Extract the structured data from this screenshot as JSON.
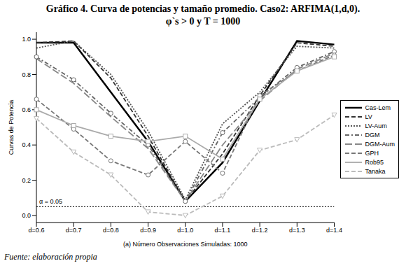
{
  "chart_data": {
    "type": "line",
    "title": "Gráfico 4. Curva de potencias y tamaño promedio. Caso2: ARFIMA(1,d,0).",
    "subtitle": "φ`s > 0 y T = 1000",
    "x_label": "(a) Número Observaciones Simuladas: 1000",
    "y_label": "Curvas de Potencia",
    "footer": "Fuente: elaboración propia",
    "categories": [
      "d=0.6",
      "d=0.7",
      "d=0.8",
      "d=0.9",
      "d=1.0",
      "d=1.1",
      "d=1.2",
      "d=1.3",
      "d=1.4"
    ],
    "series": [
      {
        "name": "Cas-Lem",
        "color": "#000000",
        "line_style": "solid",
        "marker": "none",
        "values": [
          0.98,
          0.98,
          0.7,
          0.42,
          0.08,
          0.3,
          0.65,
          0.99,
          0.97
        ]
      },
      {
        "name": "LV",
        "color": "#333333",
        "line_style": "dashed",
        "marker": "none",
        "values": [
          0.98,
          0.99,
          0.78,
          0.45,
          0.08,
          0.35,
          0.68,
          0.98,
          0.96
        ]
      },
      {
        "name": "LV-Aum",
        "color": "#555555",
        "line_style": "dotted",
        "marker": "none",
        "values": [
          0.95,
          0.99,
          0.8,
          0.48,
          0.09,
          0.52,
          0.7,
          0.96,
          0.95
        ]
      },
      {
        "name": "DGM",
        "color": "#666666",
        "line_style": "dashdot",
        "marker": "circle",
        "values": [
          0.9,
          0.77,
          0.58,
          0.4,
          0.08,
          0.47,
          0.67,
          0.84,
          0.93
        ]
      },
      {
        "name": "DGM-Aum",
        "color": "#888888",
        "line_style": "longdash",
        "marker": "none",
        "values": [
          0.89,
          0.75,
          0.56,
          0.38,
          0.08,
          0.4,
          0.65,
          0.83,
          0.92
        ]
      },
      {
        "name": "GPH",
        "color": "#777777",
        "line_style": "dashed",
        "marker": "circle",
        "values": [
          0.66,
          0.49,
          0.31,
          0.23,
          0.42,
          0.24,
          0.68,
          0.82,
          0.91
        ]
      },
      {
        "name": "Rob95",
        "color": "#aaaaaa",
        "line_style": "solid",
        "marker": "square",
        "values": [
          0.6,
          0.51,
          0.45,
          0.42,
          0.45,
          0.32,
          0.66,
          0.82,
          0.9
        ]
      },
      {
        "name": "Tanaka",
        "color": "#bbbbbb",
        "line_style": "dashed",
        "marker": "triangle",
        "values": [
          0.55,
          0.36,
          0.23,
          0.02,
          0.0,
          0.11,
          0.37,
          0.43,
          0.57
        ]
      }
    ],
    "reference_line": {
      "value": 0.05,
      "label": "α = 0.05",
      "line_style": "dotted"
    },
    "ylim": [
      -0.04,
      1.04
    ],
    "yticks": [
      {
        "value": 0,
        "label": "0.0"
      },
      0.2,
      0.4,
      0.6,
      0.8,
      {
        "value": 1,
        "label": "1.0"
      }
    ],
    "grid": false,
    "legend": "right"
  }
}
